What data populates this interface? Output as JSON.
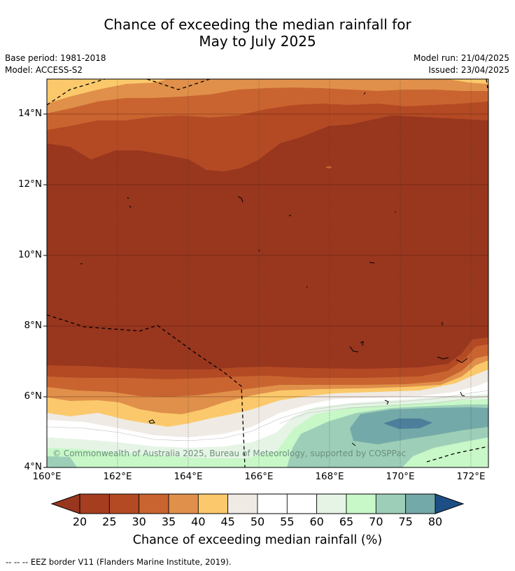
{
  "title_line1": "Chance of exceeding the median rainfall for",
  "title_line2": "May to July 2025",
  "base_period": "Base period: 1981-2018",
  "model": "Model: ACCESS-S2",
  "model_run": "Model run: 21/04/2025",
  "issued": "Issued: 23/04/2025",
  "y_ticks": [
    "14°N",
    "12°N",
    "10°N",
    "8°N",
    "6°N",
    "4°N"
  ],
  "x_ticks": [
    "160°E",
    "162°E",
    "164°E",
    "166°E",
    "168°E",
    "170°E",
    "172°E"
  ],
  "copyright": "© Commonwealth of Australia 2025, Bureau of Meteorology, supported by COSPPac",
  "colorbar": {
    "labels": [
      "20",
      "25",
      "30",
      "35",
      "40",
      "45",
      "50",
      "55",
      "60",
      "65",
      "70",
      "75",
      "80"
    ],
    "colors": [
      "#a63d1f",
      "#b34a24",
      "#c96430",
      "#e0904a",
      "#fbc96b",
      "#efeae4",
      "#ffffff",
      "#ffffff",
      "#e6f4e6",
      "#c8f7c8",
      "#9dcfb8",
      "#73a9a8",
      "#4d7f9c"
    ],
    "under_color": "#98361e",
    "over_color": "#1d4f86",
    "title": "Chance of exceeding median rainfall (%)"
  },
  "footer": "--  --  -- EEZ border V11 (Flanders Marine Institute, 2019)."
}
